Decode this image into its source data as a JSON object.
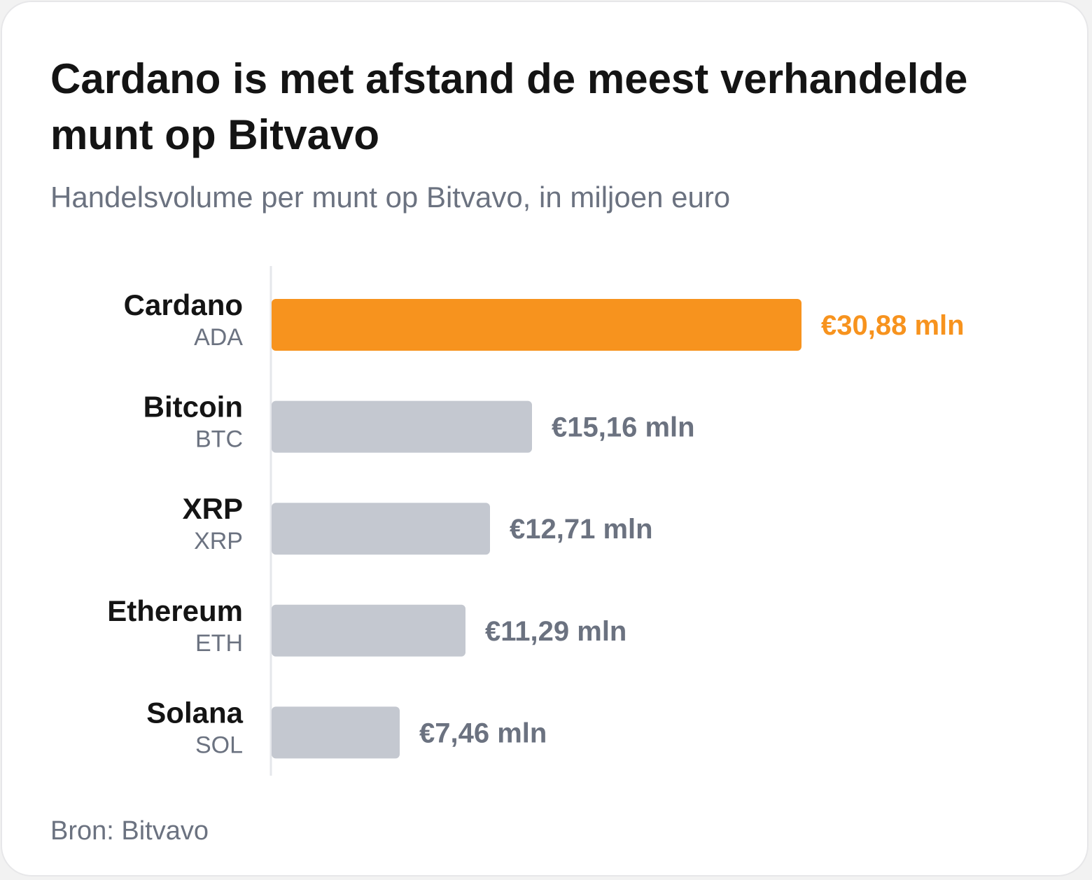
{
  "title": "Cardano is met afstand de meest verhandelde munt op Bitvavo",
  "subtitle": "Handelsvolume per munt op Bitvavo, in miljoen euro",
  "source": "Bron: Bitvavo",
  "colors": {
    "highlight": "#f7931e",
    "bar": "#c4c8d0",
    "value_text": "#6b7280",
    "axis": "#e5e7eb"
  },
  "chart_data": {
    "type": "bar",
    "orientation": "horizontal",
    "title": "Cardano is met afstand de meest verhandelde munt op Bitvavo",
    "subtitle": "Handelsvolume per munt op Bitvavo, in miljoen euro",
    "categories": [
      "Cardano",
      "Bitcoin",
      "XRP",
      "Ethereum",
      "Solana"
    ],
    "tickers": [
      "ADA",
      "BTC",
      "XRP",
      "ETH",
      "SOL"
    ],
    "values": [
      30.88,
      15.16,
      12.71,
      11.29,
      7.46
    ],
    "value_labels": [
      "€30,88 mln",
      "€15,16 mln",
      "€12,71 mln",
      "€11,29 mln",
      "€7,46 mln"
    ],
    "highlight_index": 0,
    "xlim": [
      0,
      30.88
    ],
    "grid": false,
    "legend": "none"
  }
}
